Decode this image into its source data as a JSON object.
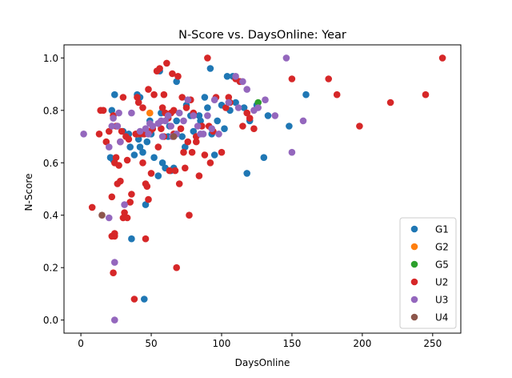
{
  "chart_data": {
    "type": "scatter",
    "title": "N-Score vs. DaysOnline: Year",
    "xlabel": "DaysOnline",
    "ylabel": "N-Score",
    "xlim": [
      -12,
      270
    ],
    "ylim": [
      -0.05,
      1.05
    ],
    "xticks": [
      0,
      50,
      100,
      150,
      200,
      250
    ],
    "yticks": [
      0.0,
      0.2,
      0.4,
      0.6,
      0.8,
      1.0
    ],
    "grid": false,
    "legend_position": "lower-right",
    "series": [
      {
        "name": "G1",
        "color": "#1f77b4",
        "x": [
          22,
          24,
          21,
          23,
          35,
          38,
          40,
          42,
          44,
          46,
          47,
          45,
          48,
          50,
          55,
          56,
          58,
          60,
          62,
          64,
          66,
          68,
          72,
          74,
          75,
          78,
          80,
          82,
          84,
          88,
          90,
          92,
          95,
          97,
          100,
          102,
          104,
          106,
          108,
          110,
          113,
          116,
          118,
          120,
          125,
          130,
          133,
          148,
          160,
          44,
          36,
          46,
          42,
          52,
          68,
          30,
          34,
          41,
          49,
          57,
          63,
          85,
          93
        ],
        "y": [
          0.8,
          0.86,
          0.62,
          0.61,
          0.66,
          0.63,
          0.86,
          0.66,
          0.64,
          0.44,
          0.68,
          0.08,
          0.71,
          0.71,
          0.55,
          0.95,
          0.6,
          0.58,
          0.7,
          0.57,
          0.58,
          0.76,
          0.7,
          0.66,
          0.82,
          0.78,
          0.72,
          0.7,
          0.78,
          0.85,
          0.81,
          0.96,
          0.63,
          0.76,
          0.82,
          0.73,
          0.93,
          0.8,
          0.93,
          0.83,
          0.91,
          0.81,
          0.56,
          0.76,
          0.82,
          0.62,
          0.78,
          0.74,
          0.86,
          0.71,
          0.31,
          0.72,
          0.85,
          0.62,
          0.91,
          0.72,
          0.71,
          0.69,
          0.76,
          0.79,
          0.74,
          0.76,
          0.71
        ]
      },
      {
        "name": "G2",
        "color": "#ff7f0e",
        "x": [
          40,
          49
        ],
        "y": [
          0.71,
          0.79
        ]
      },
      {
        "name": "G5",
        "color": "#2ca02c",
        "x": [
          126
        ],
        "y": [
          0.83
        ]
      },
      {
        "name": "U2",
        "color": "#d62728",
        "x": [
          8,
          13,
          14,
          16,
          18,
          20,
          22,
          22,
          23,
          24,
          24,
          25,
          25,
          26,
          27,
          28,
          29,
          30,
          30,
          31,
          32,
          33,
          34,
          35,
          36,
          38,
          39,
          40,
          41,
          42,
          44,
          45,
          46,
          46,
          47,
          48,
          48,
          49,
          50,
          51,
          52,
          54,
          55,
          56,
          57,
          58,
          59,
          60,
          61,
          62,
          63,
          64,
          65,
          66,
          67,
          68,
          69,
          70,
          71,
          72,
          74,
          75,
          76,
          77,
          78,
          79,
          80,
          82,
          84,
          86,
          88,
          90,
          92,
          94,
          96,
          100,
          103,
          106,
          110,
          113,
          115,
          118,
          120,
          123,
          150,
          176,
          182,
          198,
          220,
          245,
          257,
          23,
          24,
          26,
          28,
          33,
          44,
          59,
          66,
          73,
          82,
          91,
          105
        ],
        "y": [
          0.43,
          0.71,
          0.8,
          0.8,
          0.68,
          0.72,
          0.32,
          0.47,
          0.18,
          0.33,
          0.32,
          0.74,
          0.62,
          0.52,
          0.59,
          0.53,
          0.72,
          0.39,
          0.85,
          0.41,
          0.7,
          0.61,
          0.69,
          0.45,
          0.48,
          0.08,
          0.71,
          0.85,
          0.83,
          0.71,
          0.6,
          0.71,
          0.31,
          0.52,
          0.51,
          0.88,
          0.46,
          0.72,
          0.56,
          0.73,
          0.86,
          0.95,
          0.66,
          0.96,
          0.73,
          0.81,
          0.86,
          0.79,
          0.98,
          0.77,
          0.57,
          0.79,
          0.94,
          0.71,
          0.57,
          0.2,
          0.93,
          0.52,
          0.73,
          0.85,
          0.58,
          0.81,
          0.68,
          0.4,
          0.84,
          0.64,
          0.79,
          0.68,
          0.55,
          0.74,
          0.63,
          1.0,
          0.6,
          0.72,
          0.85,
          0.64,
          0.81,
          0.83,
          0.92,
          0.91,
          0.74,
          0.79,
          0.77,
          0.73,
          0.92,
          0.92,
          0.86,
          0.74,
          0.83,
          0.86,
          1.0,
          0.78,
          0.6,
          0.74,
          0.68,
          0.39,
          0.81,
          0.7,
          0.8,
          0.64,
          0.7,
          0.74,
          0.85
        ],
        "note_hidden": null
      },
      {
        "name": "U3",
        "color": "#9467bd",
        "x": [
          2,
          20,
          20,
          22,
          24,
          26,
          28,
          31,
          36,
          42,
          46,
          48,
          49,
          51,
          55,
          57,
          58,
          62,
          64,
          65,
          68,
          70,
          73,
          76,
          80,
          83,
          85,
          87,
          90,
          93,
          95,
          98,
          105,
          110,
          112,
          115,
          118,
          123,
          126,
          131,
          138,
          146,
          150,
          158,
          24,
          23,
          27,
          60
        ],
        "y": [
          0.71,
          0.39,
          0.66,
          0.74,
          0.22,
          0.74,
          0.68,
          0.44,
          0.79,
          0.72,
          0.73,
          0.71,
          0.75,
          0.74,
          0.75,
          0.76,
          0.7,
          0.78,
          0.74,
          0.7,
          0.71,
          0.79,
          0.76,
          0.84,
          0.78,
          0.74,
          0.71,
          0.71,
          0.78,
          0.73,
          0.84,
          0.71,
          0.83,
          0.93,
          0.81,
          0.91,
          0.88,
          0.8,
          0.81,
          0.84,
          0.78,
          1.0,
          0.64,
          0.76,
          0.0,
          0.77,
          0.79,
          0.76
        ]
      },
      {
        "name": "U4",
        "color": "#8c564b",
        "x": [
          15,
          66
        ],
        "y": [
          0.4,
          0.7
        ]
      }
    ]
  }
}
